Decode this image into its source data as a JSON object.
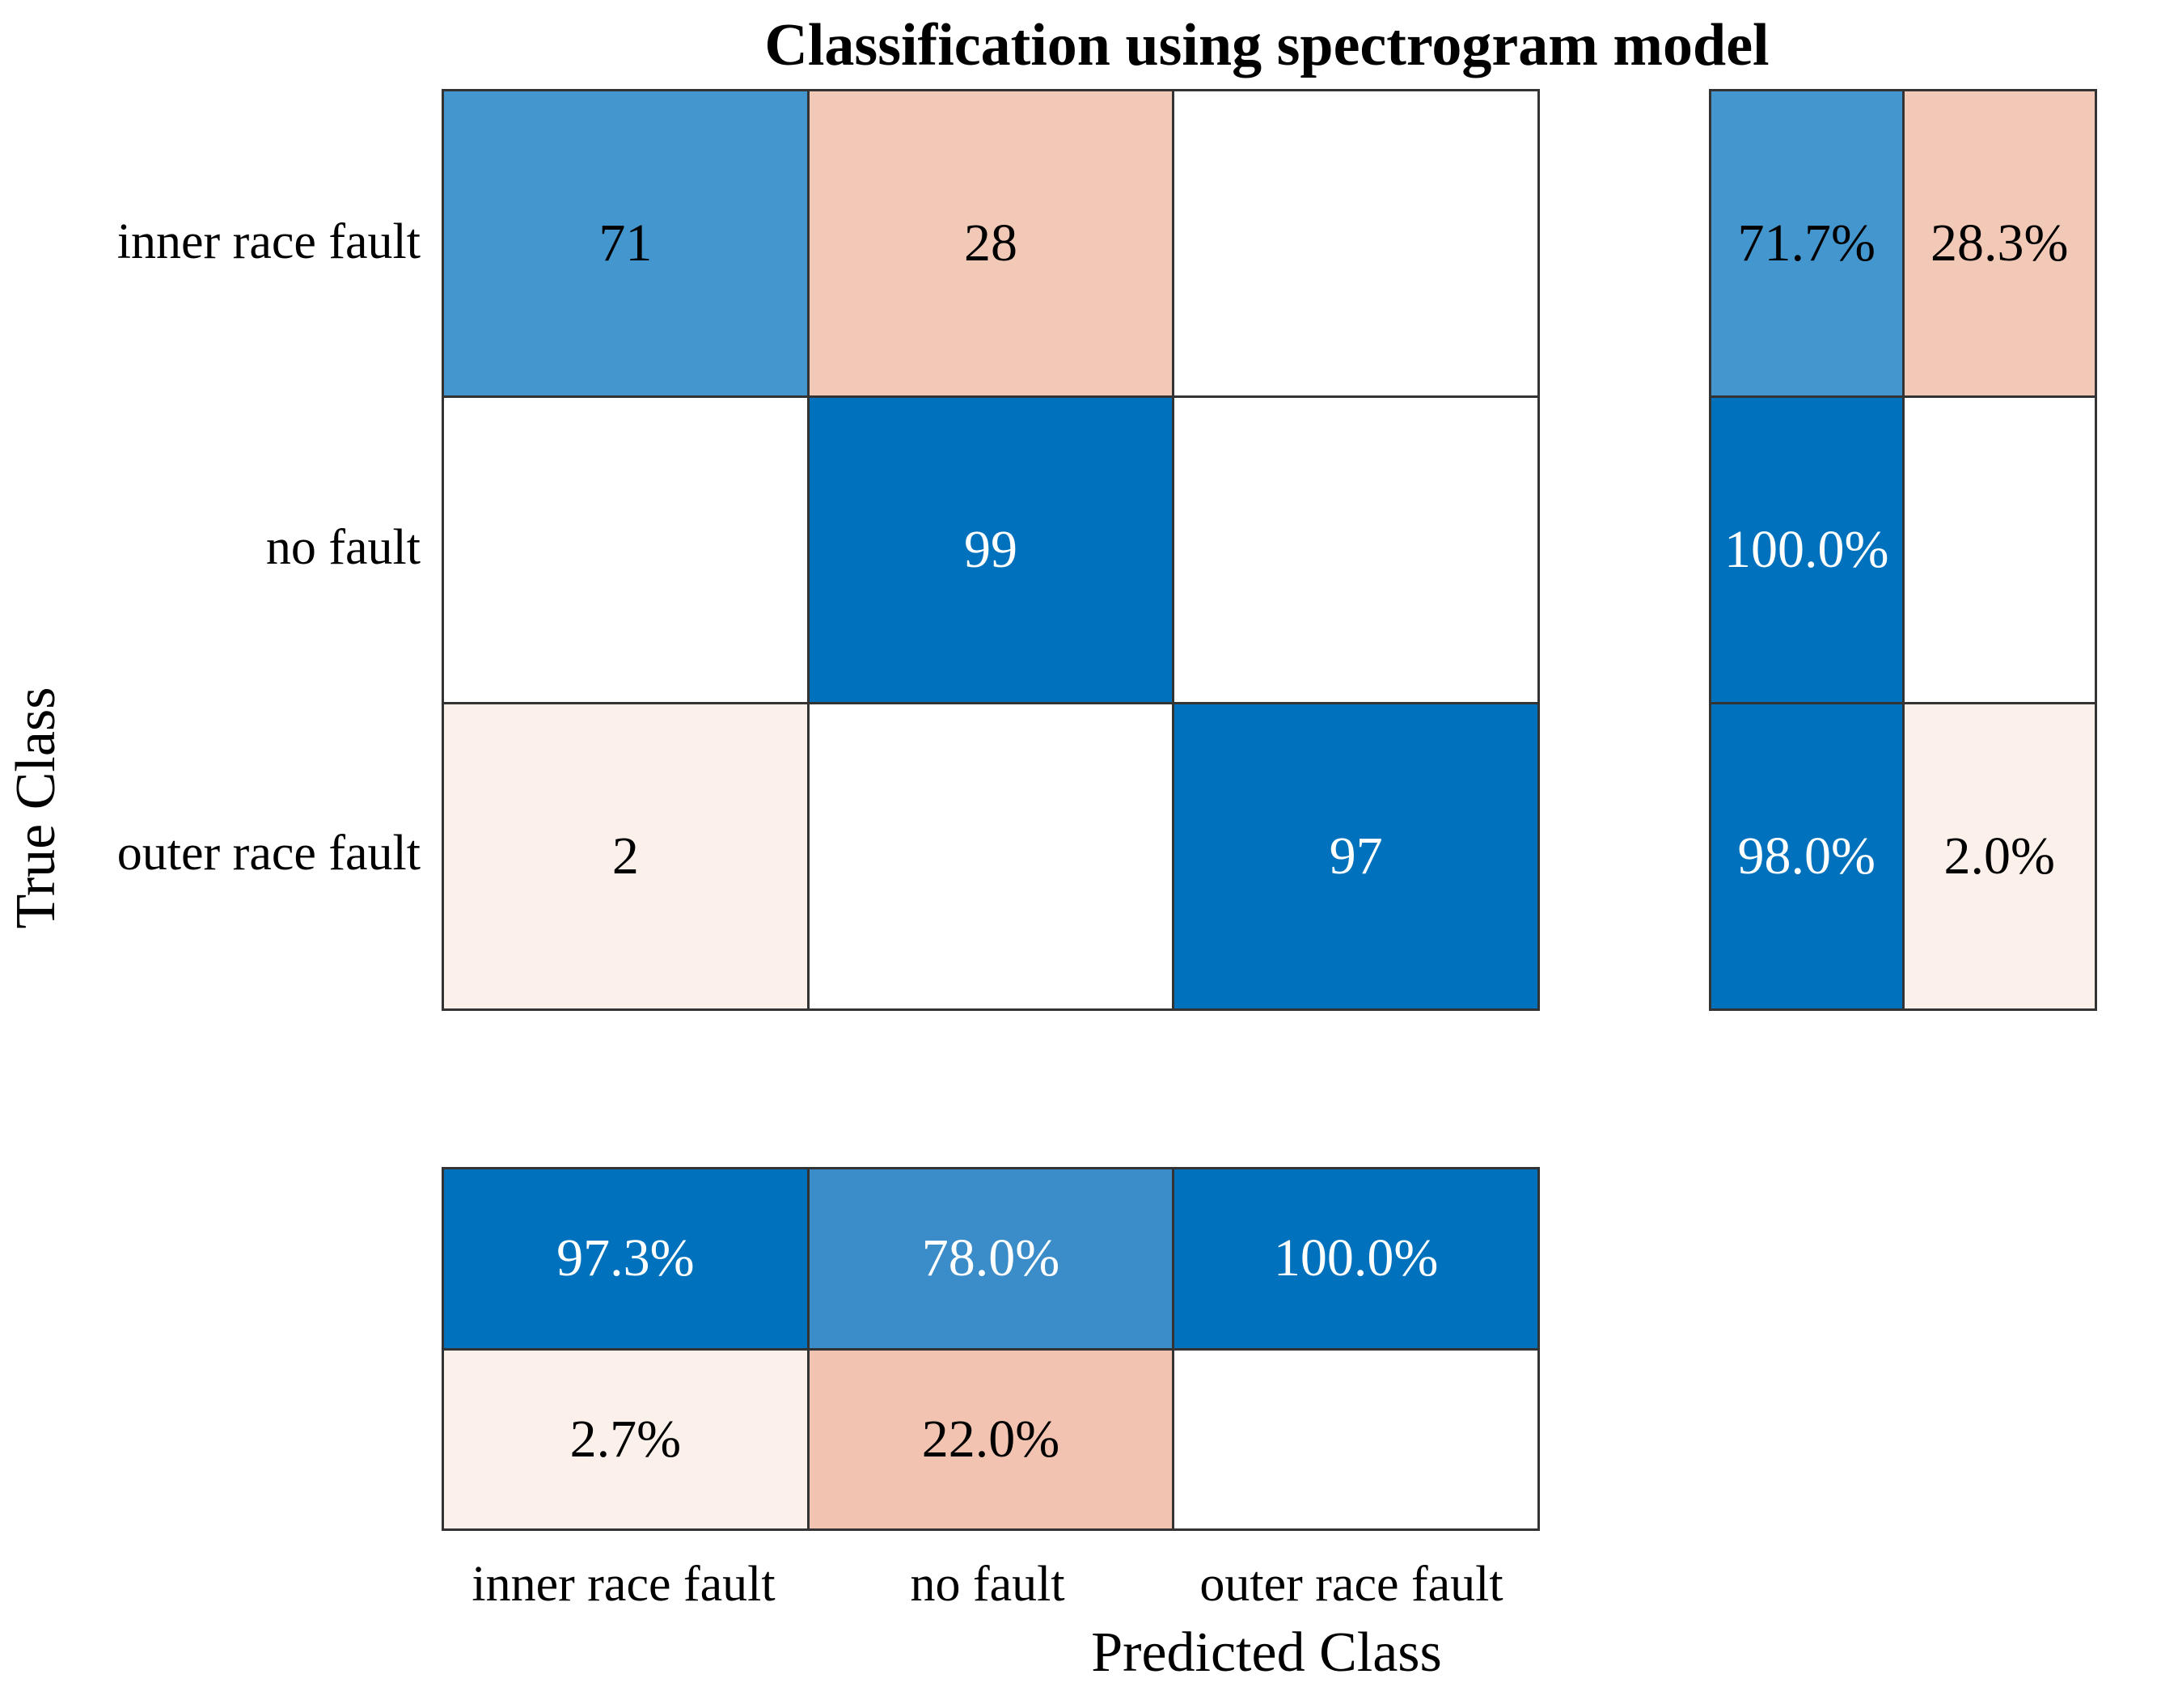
{
  "title": "Classification using spectrogram model",
  "axes": {
    "x_label": "Predicted Class",
    "y_label": "True Class"
  },
  "x_ticks": [
    "inner race fault",
    "no fault",
    "outer race fault"
  ],
  "y_ticks": [
    "inner race fault",
    "no fault",
    "outer race fault"
  ],
  "palette": {
    "correct_dark_blue": "#0072bd",
    "diagonal_medium_blue": "#4496ce",
    "summary_medium_blue": "#3a8dc8",
    "incorrect_salmon": "#f2c8b7",
    "incorrect_salmon_dark": "#f1c3b0",
    "incorrect_faint_pink": "#fbf1ea",
    "empty_white": "#ffffff",
    "grid_line": "#333333",
    "text_black": "#000000",
    "text_white": "#ffffff"
  },
  "chart_data": {
    "type": "heatmap",
    "title": "Classification using spectrogram model",
    "xlabel": "Predicted Class",
    "ylabel": "True Class",
    "x_categories": [
      "inner race fault",
      "no fault",
      "outer race fault"
    ],
    "y_categories": [
      "inner race fault",
      "no fault",
      "outer race fault"
    ],
    "matrix_counts": [
      [
        71,
        28,
        null
      ],
      [
        null,
        99,
        null
      ],
      [
        2,
        null,
        97
      ]
    ],
    "row_summary_pct": [
      [
        71.7,
        28.3
      ],
      [
        100.0,
        null
      ],
      [
        98.0,
        2.0
      ]
    ],
    "column_summary_pct": [
      [
        97.3,
        78.0,
        100.0
      ],
      [
        2.7,
        22.0,
        null
      ]
    ],
    "legend_position": "none",
    "grid": "cell-borders"
  },
  "cells": {
    "main": [
      {
        "text": "71",
        "bg": "#4496ce",
        "fg": "#000000"
      },
      {
        "text": "28",
        "bg": "#f2c8b7",
        "fg": "#000000"
      },
      {
        "text": "",
        "bg": "#ffffff",
        "fg": "#000000"
      },
      {
        "text": "",
        "bg": "#ffffff",
        "fg": "#000000"
      },
      {
        "text": "99",
        "bg": "#0072bd",
        "fg": "#ffffff"
      },
      {
        "text": "",
        "bg": "#ffffff",
        "fg": "#000000"
      },
      {
        "text": "2",
        "bg": "#fbf1ea",
        "fg": "#000000"
      },
      {
        "text": "",
        "bg": "#ffffff",
        "fg": "#000000"
      },
      {
        "text": "97",
        "bg": "#0072bd",
        "fg": "#ffffff"
      }
    ],
    "row_summary": [
      {
        "text": "71.7%",
        "bg": "#4496ce",
        "fg": "#000000"
      },
      {
        "text": "28.3%",
        "bg": "#f2c8b7",
        "fg": "#000000"
      },
      {
        "text": "100.0%",
        "bg": "#0072bd",
        "fg": "#ffffff"
      },
      {
        "text": "",
        "bg": "#ffffff",
        "fg": "#000000"
      },
      {
        "text": "98.0%",
        "bg": "#0072bd",
        "fg": "#ffffff"
      },
      {
        "text": "2.0%",
        "bg": "#fbf1ea",
        "fg": "#000000"
      }
    ],
    "col_summary": [
      {
        "text": "97.3%",
        "bg": "#0072bd",
        "fg": "#ffffff"
      },
      {
        "text": "78.0%",
        "bg": "#3a8dc8",
        "fg": "#ffffff"
      },
      {
        "text": "100.0%",
        "bg": "#0072bd",
        "fg": "#ffffff"
      },
      {
        "text": "2.7%",
        "bg": "#fbf1ea",
        "fg": "#000000"
      },
      {
        "text": "22.0%",
        "bg": "#f1c3b0",
        "fg": "#000000"
      },
      {
        "text": "",
        "bg": "#ffffff",
        "fg": "#000000"
      }
    ]
  }
}
